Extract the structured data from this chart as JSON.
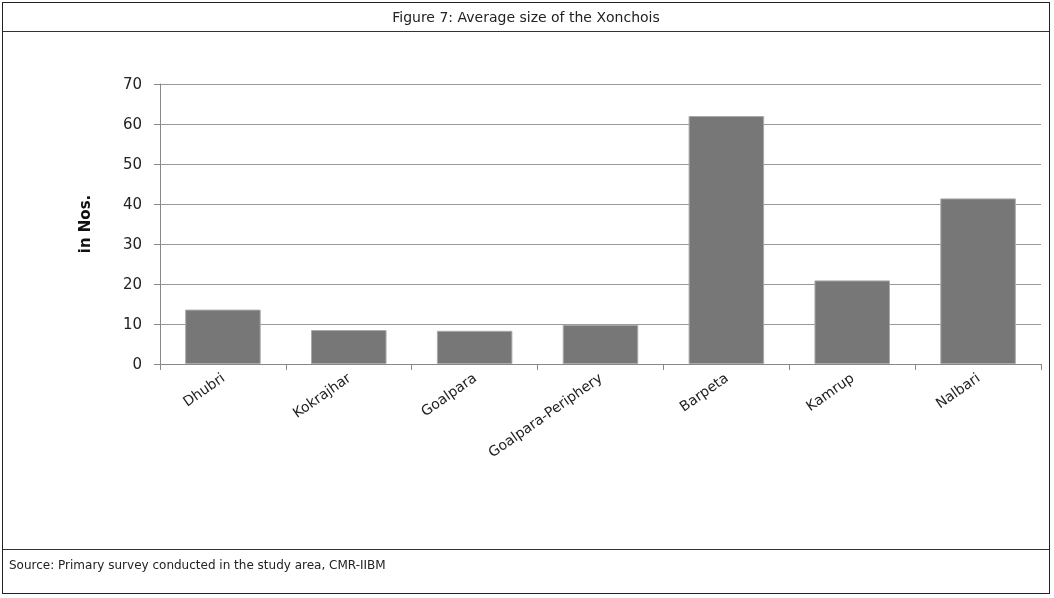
{
  "chart_data": {
    "type": "bar",
    "title": "Figure 7: Average size of the Xonchois",
    "ylabel": "in Nos.",
    "categories": [
      "Dhubri",
      "Kokrajhar",
      "Goalpara",
      "Goalpara-Periphery",
      "Barpeta",
      "Kamrup",
      "Nalbari"
    ],
    "values": [
      13.6,
      8.5,
      8.3,
      9.8,
      62.0,
      20.9,
      41.4
    ],
    "color": "#777777",
    "ylim": [
      0,
      70
    ],
    "yticks": [
      0,
      10,
      20,
      30,
      40,
      50,
      60,
      70
    ],
    "grid": "y",
    "annotations": [
      "Source: Primary survey conducted in the study area, CMR-IIBM"
    ]
  }
}
